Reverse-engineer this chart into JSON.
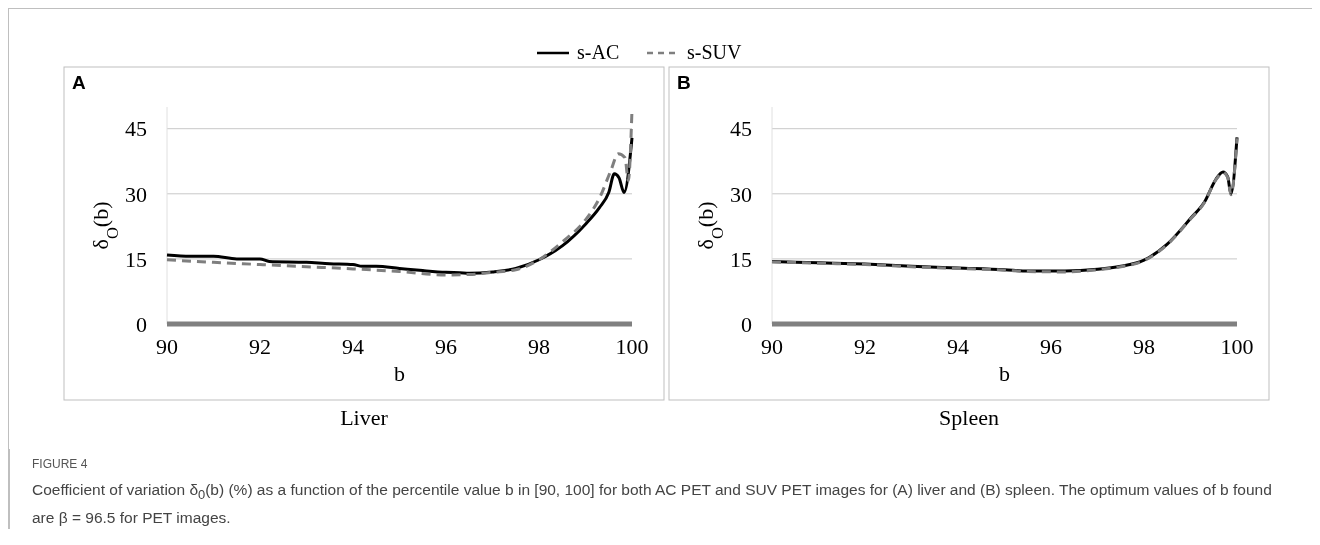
{
  "chart_data": [
    {
      "type": "line",
      "title": "A",
      "subtitle": "Liver",
      "xlabel": "b",
      "ylabel": "δ$_{O}$(b)",
      "xlim": [
        90,
        100
      ],
      "xticks": [
        90,
        92,
        94,
        96,
        98,
        100
      ],
      "ylim": [
        0,
        50
      ],
      "yticks": [
        0,
        15,
        30,
        45
      ],
      "grid": "y",
      "legend": "top",
      "annotations": [
        "FIGURE 4",
        "Coefficient of variation δ$_{0}$(b) (%) as a function of the percentile value b in [90, 100] for both AC PET and SUV PET images for (A) liver and (B) spleen. The optimum values of b found are β = 96.5 for PET images."
      ],
      "series": [
        {
          "name": "s-AC",
          "color": "#000000",
          "line_style": "solid",
          "x": [
            90,
            90.5,
            91,
            91.5,
            92,
            92.2,
            93,
            93.5,
            94,
            94.2,
            94.5,
            95,
            95.5,
            96,
            96.3,
            96.5,
            97,
            97.5,
            98,
            98.5,
            99,
            99.3,
            99.5,
            99.62,
            99.72,
            99.83,
            100
          ],
          "values": [
            15.9,
            15.6,
            15.6,
            15.0,
            15.0,
            14.4,
            14.2,
            13.9,
            13.7,
            13.3,
            13.3,
            12.8,
            12.3,
            11.9,
            11.8,
            11.7,
            12.0,
            12.8,
            14.8,
            18,
            23,
            26.8,
            30.3,
            34.6,
            33.7,
            30.3,
            42.9
          ]
        },
        {
          "name": "s-SUV",
          "color": "#7f7f7f",
          "line_style": "dashed",
          "x": [
            90,
            91,
            92,
            93,
            94,
            95,
            96,
            96.5,
            97,
            97.5,
            98,
            98.5,
            99,
            99.3,
            99.55,
            99.7,
            99.85,
            99.92,
            100
          ],
          "values": [
            14.8,
            14.2,
            13.7,
            13.2,
            12.7,
            12.1,
            11.3,
            11.4,
            11.9,
            12.5,
            14.8,
            18.9,
            24,
            29,
            35.5,
            39.2,
            38.3,
            33,
            49.4
          ]
        }
      ]
    },
    {
      "type": "line",
      "title": "B",
      "subtitle": "Spleen",
      "xlabel": "b",
      "ylabel": "δ$_{O}$(b)",
      "xlim": [
        90,
        100
      ],
      "xticks": [
        90,
        92,
        94,
        96,
        98,
        100
      ],
      "ylim": [
        0,
        50
      ],
      "yticks": [
        0,
        15,
        30,
        45
      ],
      "grid": "y",
      "legend": false,
      "series": [
        {
          "color": "#000000",
          "line_style": "solid",
          "x": [
            90,
            91,
            92,
            93,
            94,
            95,
            95.5,
            96.3,
            97,
            97.5,
            98,
            98.5,
            99,
            99.3,
            99.55,
            99.7,
            99.8,
            99.87,
            100
          ],
          "values": [
            14.4,
            14.1,
            13.8,
            13.3,
            12.9,
            12.5,
            12.2,
            12.2,
            12.6,
            13.3,
            14.7,
            18.4,
            24.3,
            28.1,
            33.4,
            35,
            33.9,
            30,
            43
          ]
        },
        {
          "color": "#7f7f7f",
          "line_style": "dashed",
          "x": [
            90,
            91,
            92,
            93,
            94,
            95,
            95.5,
            96.3,
            97,
            97.5,
            98,
            98.5,
            99,
            99.3,
            99.55,
            99.7,
            99.8,
            99.87,
            100
          ],
          "values": [
            14.3,
            14.0,
            13.7,
            13.2,
            12.8,
            12.4,
            12.1,
            12.0,
            12.5,
            13.2,
            14.6,
            18.3,
            24.2,
            28.0,
            33.3,
            34.9,
            33.8,
            29.8,
            42.8
          ]
        }
      ]
    }
  ]
}
